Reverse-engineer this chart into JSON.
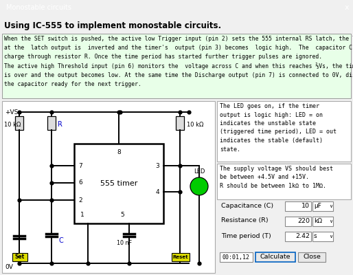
{
  "title_bar": "Monostable circuits",
  "title_bar_color": "#0078d7",
  "title_bar_text_color": "#ffffff",
  "subtitle": "Using IC-555 to implement monostable circuits.",
  "desc_text": "When the SET switch is pushed, the active low Trigger input (pin 2) sets the 555 internal RS latch, the logic low\nat the  latch output is  inverted and the timer's  output (pin 3) becomes  logic high.  The  capacitor C starts to\ncharge through resistor R. Once the time period has started further trigger pulses are ignored.\nThe active high Threshold input (pin 6) monitors the  voltage across C and when this reaches ⅔Vs, the time period\nis over and the output becomes low. At the same time the Discharge output (pin 7) is connected to 0V, discharging\nthe capacitor ready for the next trigger.",
  "info_text1": "The LED goes on, if the timer\noutput is logic high: LED = on\nindicates the unstable state\n(triggered time period), LED = out\nindicates the stable (default)\nstate.",
  "info_text2": "The supply voltage VS should best\nbe between +4.5V and +15V.\nR should be between 1kΩ to 1MΩ.",
  "bg_color": "#f0f0f0",
  "desc_bg": "#e8ffe8",
  "circuit_bg": "#ffffff",
  "led_color": "#00cc00",
  "cap_label": "Capacitance (C)",
  "cap_value": "10",
  "cap_unit": "μF",
  "res_label": "Resistance (R)",
  "res_value": "220",
  "res_unit": "kΩ",
  "time_label": "Time period (T)",
  "time_value": "2.42",
  "time_unit": "s",
  "timer_display": "00:01,12",
  "btn_calculate": "Calculate",
  "btn_close": "Close"
}
